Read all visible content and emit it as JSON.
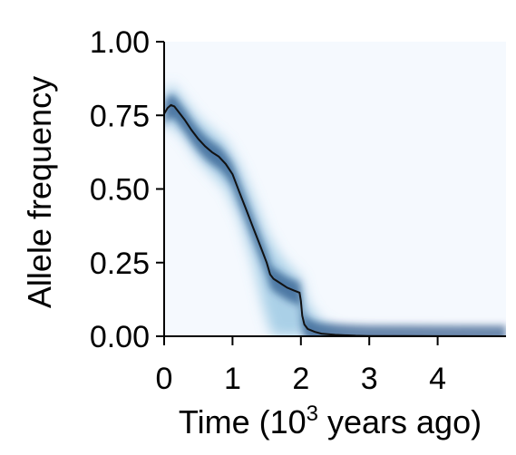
{
  "chart_data": {
    "type": "area",
    "title": "",
    "xlabel_prefix": "Time (10",
    "xlabel_superscript": "3",
    "xlabel_suffix": " years ago)",
    "ylabel": "Allele frequency",
    "xlim": [
      0,
      5
    ],
    "ylim": [
      0,
      1
    ],
    "x_ticks": [
      0,
      1,
      2,
      3,
      4
    ],
    "x_tick_labels": [
      "0",
      "1",
      "2",
      "3",
      "4"
    ],
    "y_ticks": [
      0,
      0.25,
      0.5,
      0.75,
      1.0
    ],
    "y_tick_labels": [
      "0.00",
      "0.25",
      "0.50",
      "0.75",
      "1.00"
    ],
    "grid": false,
    "background_color": "#f5f9fe",
    "density_color": "#08306b",
    "line_color": "#111111",
    "series": [
      {
        "role": "mean",
        "x": [
          0,
          0.05,
          0.1,
          0.15,
          0.2,
          0.3,
          0.4,
          0.5,
          0.6,
          0.7,
          0.8,
          0.9,
          1.0,
          1.1,
          1.2,
          1.3,
          1.4,
          1.5,
          1.55,
          1.6,
          1.7,
          1.8,
          1.9,
          1.98,
          2.0,
          2.02,
          2.05,
          2.1,
          2.2,
          2.3,
          2.5,
          2.8,
          3.0,
          3.5,
          4.0,
          5.0
        ],
        "y": [
          0.755,
          0.775,
          0.785,
          0.78,
          0.765,
          0.735,
          0.7,
          0.67,
          0.645,
          0.625,
          0.61,
          0.585,
          0.55,
          0.49,
          0.43,
          0.37,
          0.31,
          0.25,
          0.21,
          0.195,
          0.18,
          0.165,
          0.155,
          0.148,
          0.12,
          0.07,
          0.04,
          0.025,
          0.015,
          0.009,
          0.005,
          0.002,
          0.001,
          0.0005,
          0.0002,
          0
        ]
      },
      {
        "role": "upper",
        "x": [
          0,
          0.1,
          0.3,
          0.5,
          0.7,
          0.9,
          1.1,
          1.3,
          1.5,
          1.7,
          1.9,
          2.0,
          2.1,
          2.3,
          2.6,
          3.0,
          4.0,
          5.0
        ],
        "y": [
          0.82,
          0.86,
          0.8,
          0.74,
          0.7,
          0.66,
          0.58,
          0.47,
          0.35,
          0.27,
          0.22,
          0.2,
          0.11,
          0.05,
          0.02,
          0.01,
          0.003,
          0
        ]
      },
      {
        "role": "lower",
        "x": [
          0,
          0.1,
          0.3,
          0.5,
          0.7,
          0.9,
          1.1,
          1.3,
          1.45,
          1.55,
          1.6,
          1.7,
          2.0,
          3.0,
          5.0
        ],
        "y": [
          0.7,
          0.72,
          0.67,
          0.6,
          0.55,
          0.5,
          0.4,
          0.25,
          0.1,
          0.02,
          0,
          0,
          0,
          0,
          0
        ]
      }
    ]
  }
}
